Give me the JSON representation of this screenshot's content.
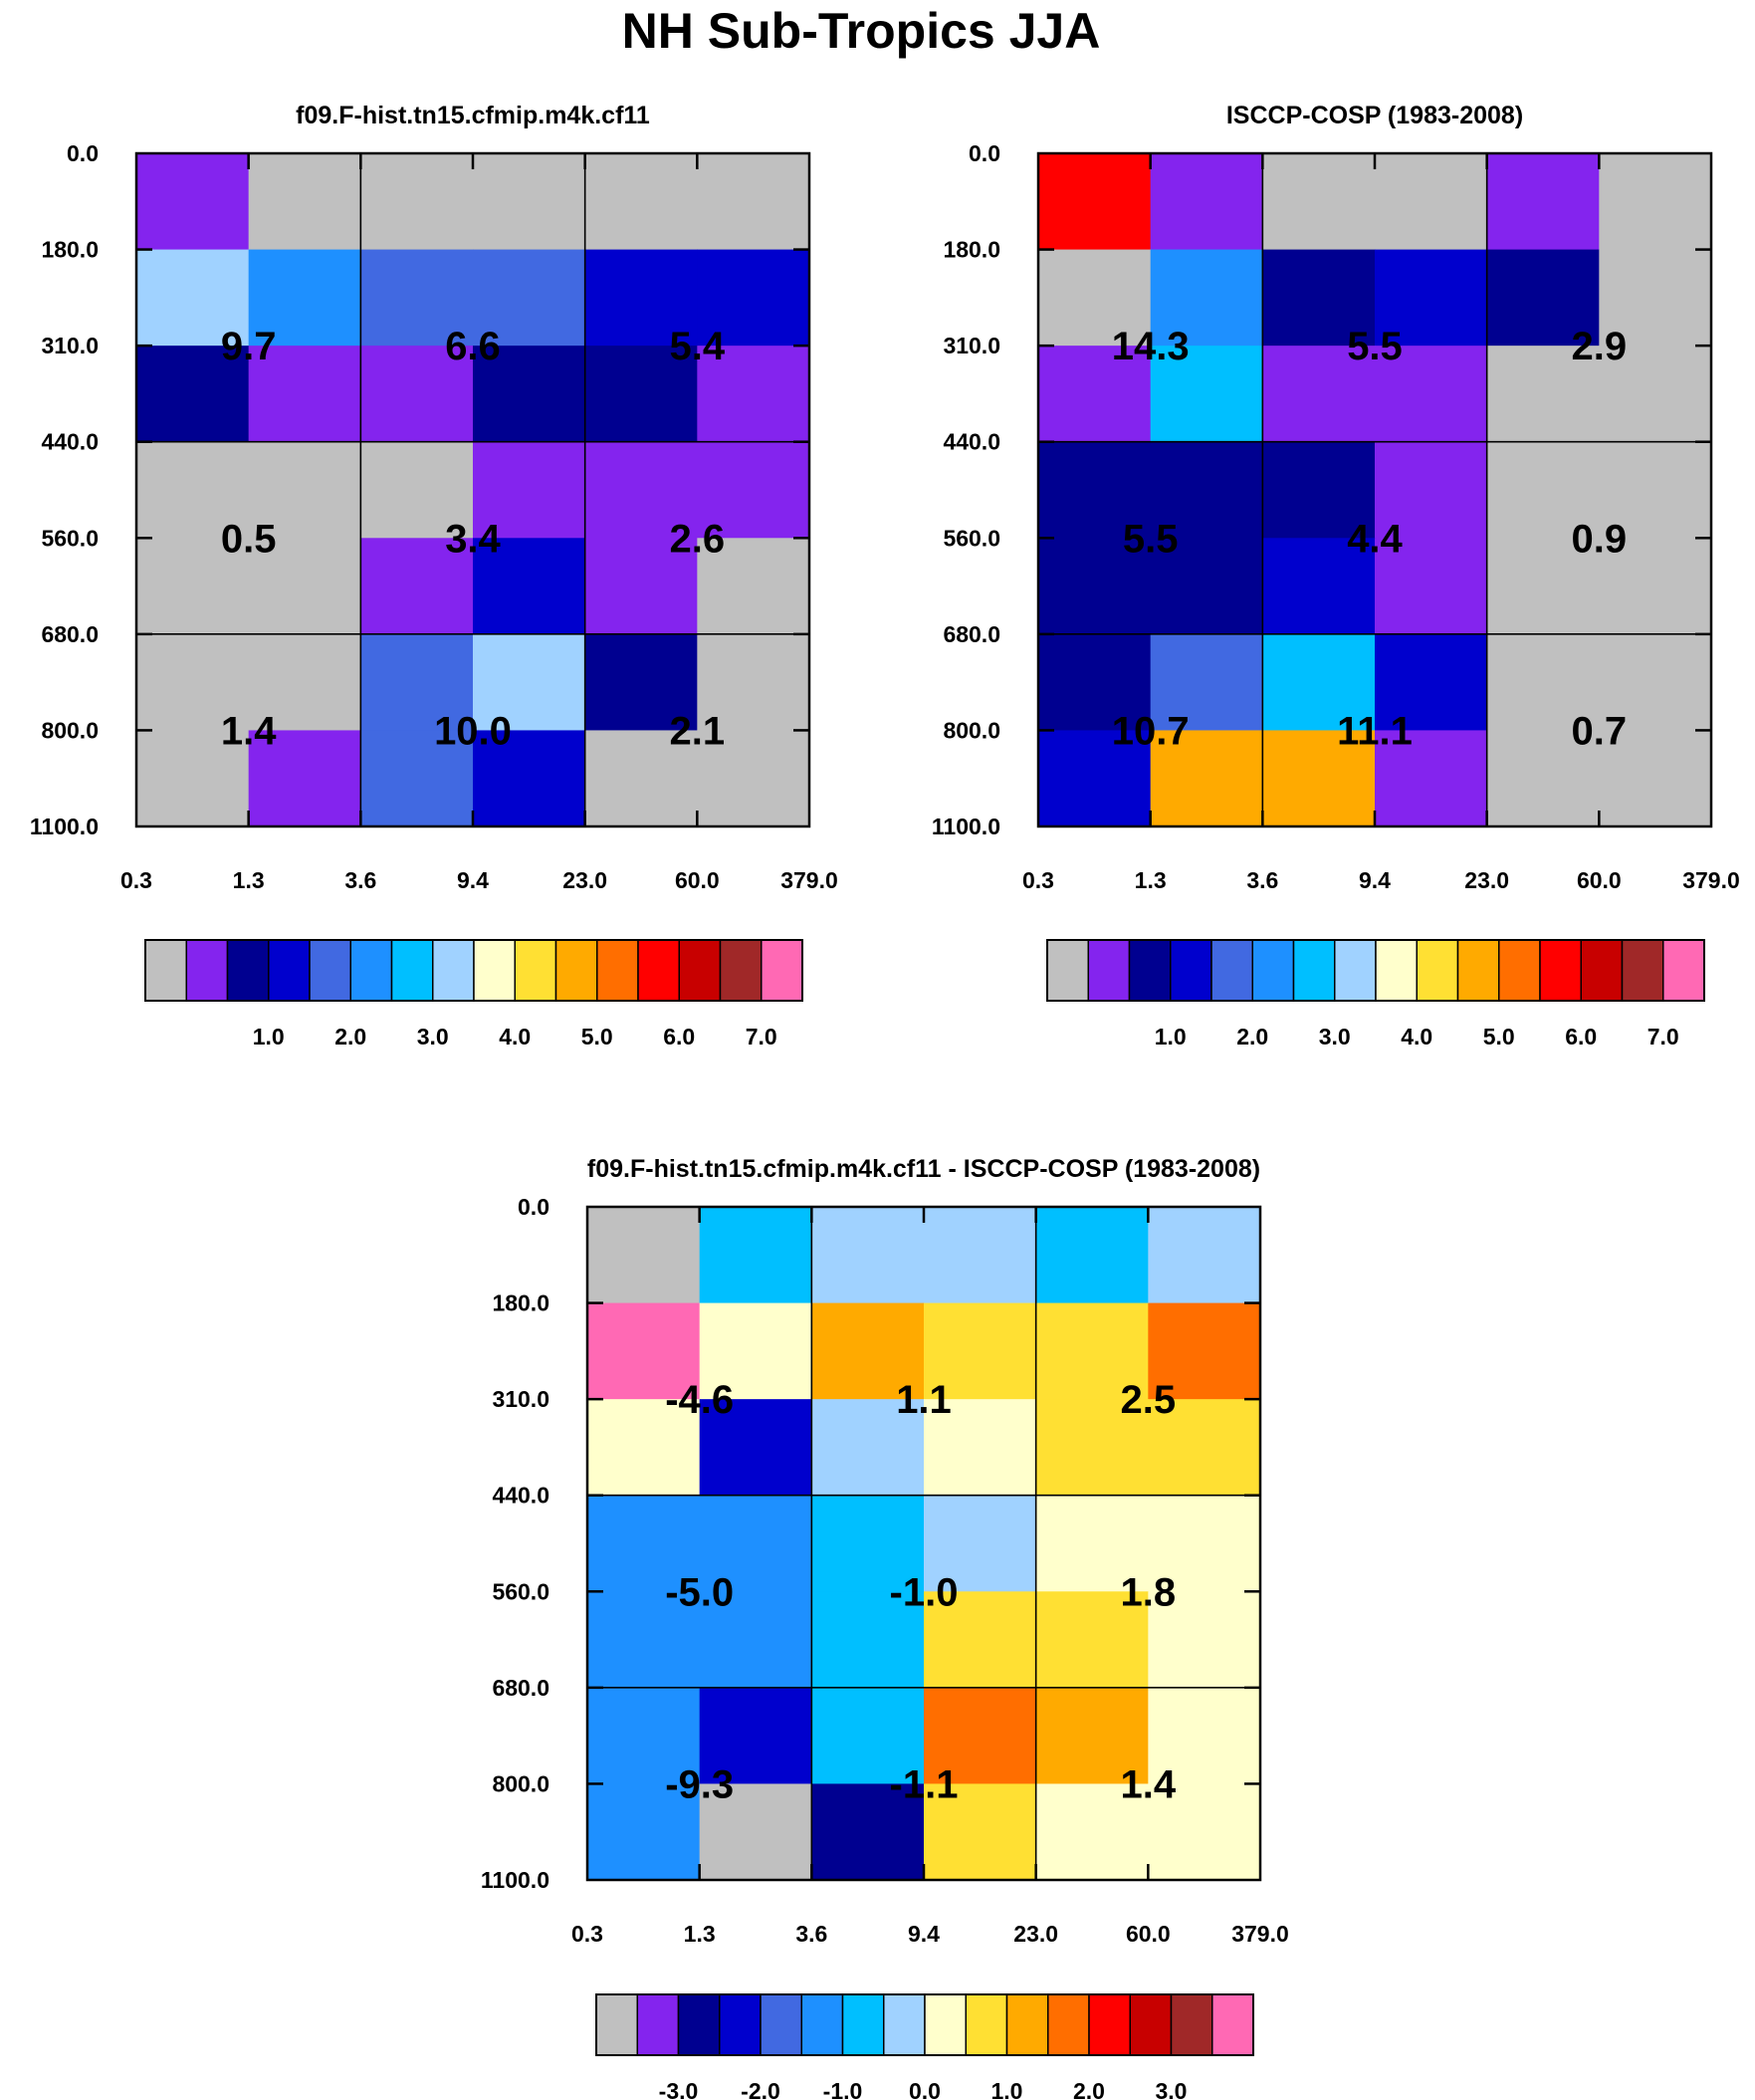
{
  "figure": {
    "title": "NH Sub-Tropics JJA"
  },
  "chart_data": [
    {
      "type": "heatmap",
      "title": "f09.F-hist.tn15.cfmip.m4k.cf11",
      "x_ticks": [
        "0.3",
        "1.3",
        "3.6",
        "9.4",
        "23.0",
        "60.0",
        "379.0"
      ],
      "y_ticks": [
        "0.0",
        "180.0",
        "310.0",
        "440.0",
        "560.0",
        "680.0",
        "800.0",
        "1100.0"
      ],
      "cells": [
        [
          1,
          0,
          0,
          0,
          0,
          0
        ],
        [
          7,
          5,
          4,
          4,
          3,
          3
        ],
        [
          2,
          1,
          1,
          2,
          2,
          1
        ],
        [
          0,
          0,
          0,
          1,
          1,
          1
        ],
        [
          0,
          0,
          1,
          3,
          1,
          0
        ],
        [
          0,
          0,
          4,
          7,
          2,
          0
        ],
        [
          0,
          1,
          4,
          3,
          0,
          0
        ]
      ],
      "block_labels": [
        [
          "9.7",
          "6.6",
          "5.4"
        ],
        [
          "0.5",
          "3.4",
          "2.6"
        ],
        [
          "1.4",
          "10.0",
          "2.1"
        ]
      ],
      "colorbar": {
        "levels": [
          "1.0",
          "2.0",
          "3.0",
          "4.0",
          "5.0",
          "6.0",
          "7.0"
        ],
        "colors": [
          "#c0c0c0",
          "#8424ee",
          "#000090",
          "#0000cd",
          "#4169e1",
          "#1e90ff",
          "#00bfff",
          "#a0d2ff",
          "#ffffcc",
          "#ffe033",
          "#ffaa00",
          "#ff6e00",
          "#ff0000",
          "#c80000",
          "#a02828",
          "#ff69b4"
        ],
        "label_start_boundary": 3
      }
    },
    {
      "type": "heatmap",
      "title": "ISCCP-COSP (1983-2008)",
      "x_ticks": [
        "0.3",
        "1.3",
        "3.6",
        "9.4",
        "23.0",
        "60.0",
        "379.0"
      ],
      "y_ticks": [
        "0.0",
        "180.0",
        "310.0",
        "440.0",
        "560.0",
        "680.0",
        "800.0",
        "1100.0"
      ],
      "cells": [
        [
          12,
          1,
          0,
          0,
          1,
          0
        ],
        [
          0,
          5,
          2,
          3,
          2,
          0
        ],
        [
          1,
          6,
          1,
          1,
          0,
          0
        ],
        [
          2,
          2,
          2,
          1,
          0,
          0
        ],
        [
          2,
          2,
          3,
          1,
          0,
          0
        ],
        [
          2,
          4,
          6,
          3,
          0,
          0
        ],
        [
          3,
          10,
          10,
          1,
          0,
          0
        ]
      ],
      "block_labels": [
        [
          "14.3",
          "5.5",
          "2.9"
        ],
        [
          "5.5",
          "4.4",
          "0.9"
        ],
        [
          "10.7",
          "11.1",
          "0.7"
        ]
      ],
      "colorbar": {
        "levels": [
          "1.0",
          "2.0",
          "3.0",
          "4.0",
          "5.0",
          "6.0",
          "7.0"
        ],
        "colors": [
          "#c0c0c0",
          "#8424ee",
          "#000090",
          "#0000cd",
          "#4169e1",
          "#1e90ff",
          "#00bfff",
          "#a0d2ff",
          "#ffffcc",
          "#ffe033",
          "#ffaa00",
          "#ff6e00",
          "#ff0000",
          "#c80000",
          "#a02828",
          "#ff69b4"
        ],
        "label_start_boundary": 3
      }
    },
    {
      "type": "heatmap",
      "title": "f09.F-hist.tn15.cfmip.m4k.cf11 - ISCCP-COSP (1983-2008)",
      "x_ticks": [
        "0.3",
        "1.3",
        "3.6",
        "9.4",
        "23.0",
        "60.0",
        "379.0"
      ],
      "y_ticks": [
        "0.0",
        "180.0",
        "310.0",
        "440.0",
        "560.0",
        "680.0",
        "800.0",
        "1100.0"
      ],
      "cells": [
        [
          0,
          6,
          7,
          7,
          6,
          7
        ],
        [
          15,
          8,
          10,
          9,
          9,
          11
        ],
        [
          8,
          3,
          7,
          8,
          9,
          9
        ],
        [
          5,
          5,
          6,
          7,
          8,
          8
        ],
        [
          5,
          5,
          6,
          9,
          9,
          8
        ],
        [
          5,
          3,
          6,
          11,
          10,
          8
        ],
        [
          5,
          0,
          2,
          9,
          8,
          8
        ]
      ],
      "block_labels": [
        [
          "-4.6",
          "1.1",
          "2.5"
        ],
        [
          "-5.0",
          "-1.0",
          "1.8"
        ],
        [
          "-9.3",
          "-1.1",
          "1.4"
        ]
      ],
      "colorbar": {
        "levels": [
          "-3.0",
          "-2.0",
          "-1.0",
          "0.0",
          "1.0",
          "2.0",
          "3.0"
        ],
        "colors": [
          "#c0c0c0",
          "#8424ee",
          "#000090",
          "#0000cd",
          "#4169e1",
          "#1e90ff",
          "#00bfff",
          "#a0d2ff",
          "#ffffcc",
          "#ffe033",
          "#ffaa00",
          "#ff6e00",
          "#ff0000",
          "#c80000",
          "#a02828",
          "#ff69b4"
        ],
        "label_start_boundary": 2
      }
    }
  ]
}
